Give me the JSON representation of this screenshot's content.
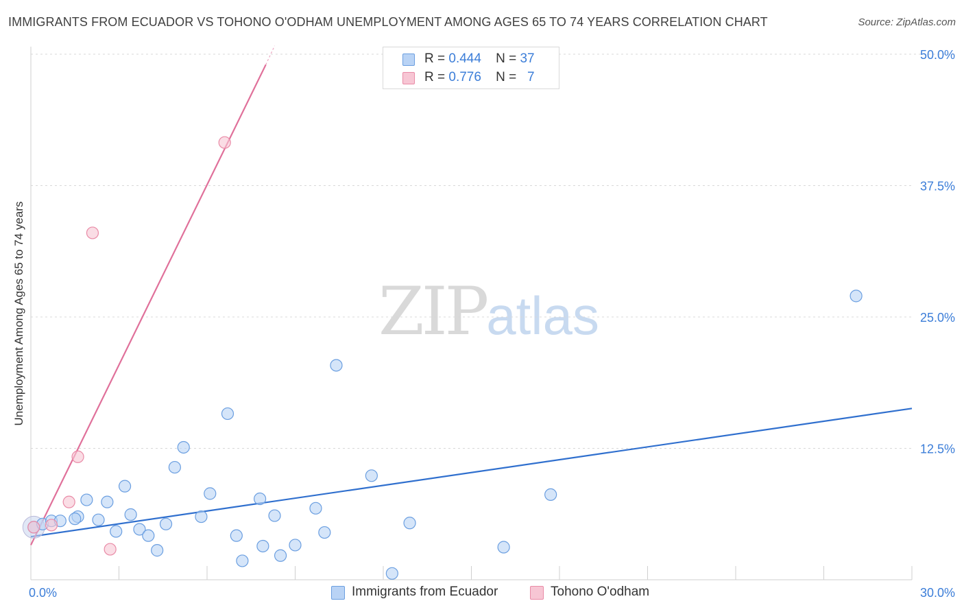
{
  "title": "IMMIGRANTS FROM ECUADOR VS TOHONO O'ODHAM UNEMPLOYMENT AMONG AGES 65 TO 74 YEARS CORRELATION CHART",
  "source": "Source: ZipAtlas.com",
  "watermark": {
    "zip": "ZIP",
    "atlas": "atlas"
  },
  "colors": {
    "blue_fill": "#b9d3f5",
    "blue_stroke": "#6a9ee0",
    "blue_line": "#2f6fce",
    "pink_fill": "#f7c6d4",
    "pink_stroke": "#e98aa6",
    "pink_line": "#e0709a",
    "axis_text": "#3b7dd8",
    "grid": "#d8d8d8"
  },
  "legend_top": [
    {
      "r_label": "R =",
      "r_value": "0.444",
      "n_label": "N =",
      "n_value": "37"
    },
    {
      "r_label": "R =",
      "r_value": "0.776",
      "n_label": "N =",
      "n_value": "7"
    }
  ],
  "legend_bottom": [
    {
      "label": "Immigrants from Ecuador"
    },
    {
      "label": "Tohono O'odham"
    }
  ],
  "chart_data": {
    "type": "scatter",
    "title": "IMMIGRANTS FROM ECUADOR VS TOHONO O'ODHAM UNEMPLOYMENT AMONG AGES 65 TO 74 YEARS CORRELATION CHART",
    "xlabel": "",
    "ylabel": "Unemployment Among Ages 65 to 74 years",
    "xlim": [
      0,
      30
    ],
    "ylim": [
      0,
      50
    ],
    "x_tick_labels": [
      "0.0%",
      "30.0%"
    ],
    "y_tick_values": [
      12.5,
      25,
      37.5,
      50
    ],
    "y_tick_labels": [
      "12.5%",
      "25.0%",
      "37.5%",
      "50.0%"
    ],
    "grid": true,
    "legend_position": "bottom",
    "series": [
      {
        "name": "Immigrants from Ecuador",
        "color": "blue",
        "points": [
          [
            0.1,
            5.0
          ],
          [
            0.4,
            5.3
          ],
          [
            0.7,
            5.6
          ],
          [
            1.0,
            5.6
          ],
          [
            1.6,
            6.0
          ],
          [
            1.5,
            5.8
          ],
          [
            1.9,
            7.6
          ],
          [
            2.3,
            5.7
          ],
          [
            2.6,
            7.4
          ],
          [
            2.9,
            4.6
          ],
          [
            3.2,
            8.9
          ],
          [
            3.4,
            6.2
          ],
          [
            3.7,
            4.8
          ],
          [
            4.0,
            4.2
          ],
          [
            4.3,
            2.8
          ],
          [
            4.6,
            5.3
          ],
          [
            4.9,
            10.7
          ],
          [
            5.2,
            12.6
          ],
          [
            5.8,
            6.0
          ],
          [
            6.1,
            8.2
          ],
          [
            6.7,
            15.8
          ],
          [
            7.0,
            4.2
          ],
          [
            7.2,
            1.8
          ],
          [
            7.8,
            7.7
          ],
          [
            7.9,
            3.2
          ],
          [
            8.3,
            6.1
          ],
          [
            8.5,
            2.3
          ],
          [
            9.0,
            3.3
          ],
          [
            9.7,
            6.8
          ],
          [
            10.0,
            4.5
          ],
          [
            10.4,
            20.4
          ],
          [
            11.6,
            9.9
          ],
          [
            12.3,
            0.6
          ],
          [
            12.9,
            5.4
          ],
          [
            16.1,
            3.1
          ],
          [
            17.7,
            8.1
          ],
          [
            28.1,
            27.0
          ]
        ],
        "trend": [
          [
            0,
            4.1
          ],
          [
            30,
            16.3
          ]
        ]
      },
      {
        "name": "Tohono O'odham",
        "color": "pink",
        "points": [
          [
            0.1,
            5.0
          ],
          [
            0.7,
            5.2
          ],
          [
            1.6,
            11.7
          ],
          [
            1.3,
            7.4
          ],
          [
            2.1,
            33.0
          ],
          [
            2.7,
            2.9
          ],
          [
            6.6,
            41.6
          ]
        ],
        "trend": [
          [
            0,
            3.3
          ],
          [
            8.0,
            49.0
          ]
        ]
      }
    ]
  }
}
